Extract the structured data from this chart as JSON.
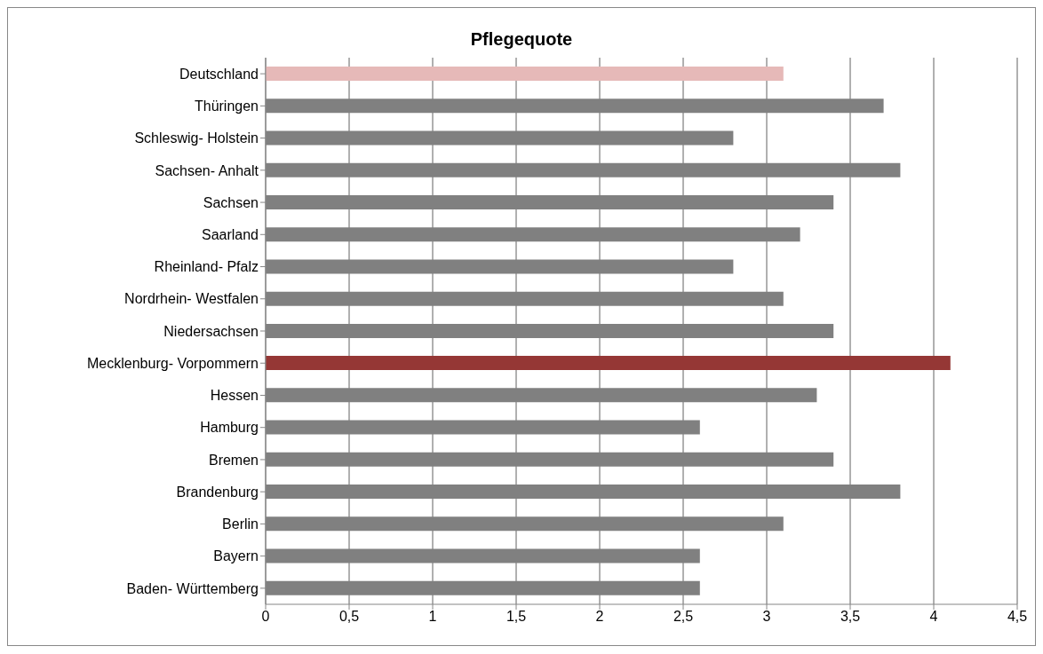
{
  "chart_data": {
    "type": "bar",
    "orientation": "horizontal",
    "title": "Pflegequote",
    "categories": [
      "Deutschland",
      "Thüringen",
      "Schleswig- Holstein",
      "Sachsen- Anhalt",
      "Sachsen",
      "Saarland",
      "Rheinland- Pfalz",
      "Nordrhein- Westfalen",
      "Niedersachsen",
      "Mecklenburg- Vorpommern",
      "Hessen",
      "Hamburg",
      "Bremen",
      "Brandenburg",
      "Berlin",
      "Bayern",
      "Baden- Württemberg"
    ],
    "values": [
      3.1,
      3.7,
      2.8,
      3.8,
      3.4,
      3.2,
      2.8,
      3.1,
      3.4,
      4.1,
      3.3,
      2.6,
      3.4,
      3.8,
      3.1,
      2.6,
      2.6
    ],
    "colors": [
      "#e6b9b8",
      "#808080",
      "#808080",
      "#808080",
      "#808080",
      "#808080",
      "#808080",
      "#808080",
      "#808080",
      "#953735",
      "#808080",
      "#808080",
      "#808080",
      "#808080",
      "#808080",
      "#808080",
      "#808080"
    ],
    "xlim": [
      0,
      4.5
    ],
    "xticks": [
      0,
      {
        "value": 0.5,
        "label": "0,5"
      },
      1,
      {
        "value": 1.5,
        "label": "1,5"
      },
      2,
      {
        "value": 2.5,
        "label": "2,5"
      },
      3,
      {
        "value": 3.5,
        "label": "3,5"
      },
      4,
      {
        "value": 4.5,
        "label": "4,5"
      }
    ],
    "grid": "x"
  }
}
